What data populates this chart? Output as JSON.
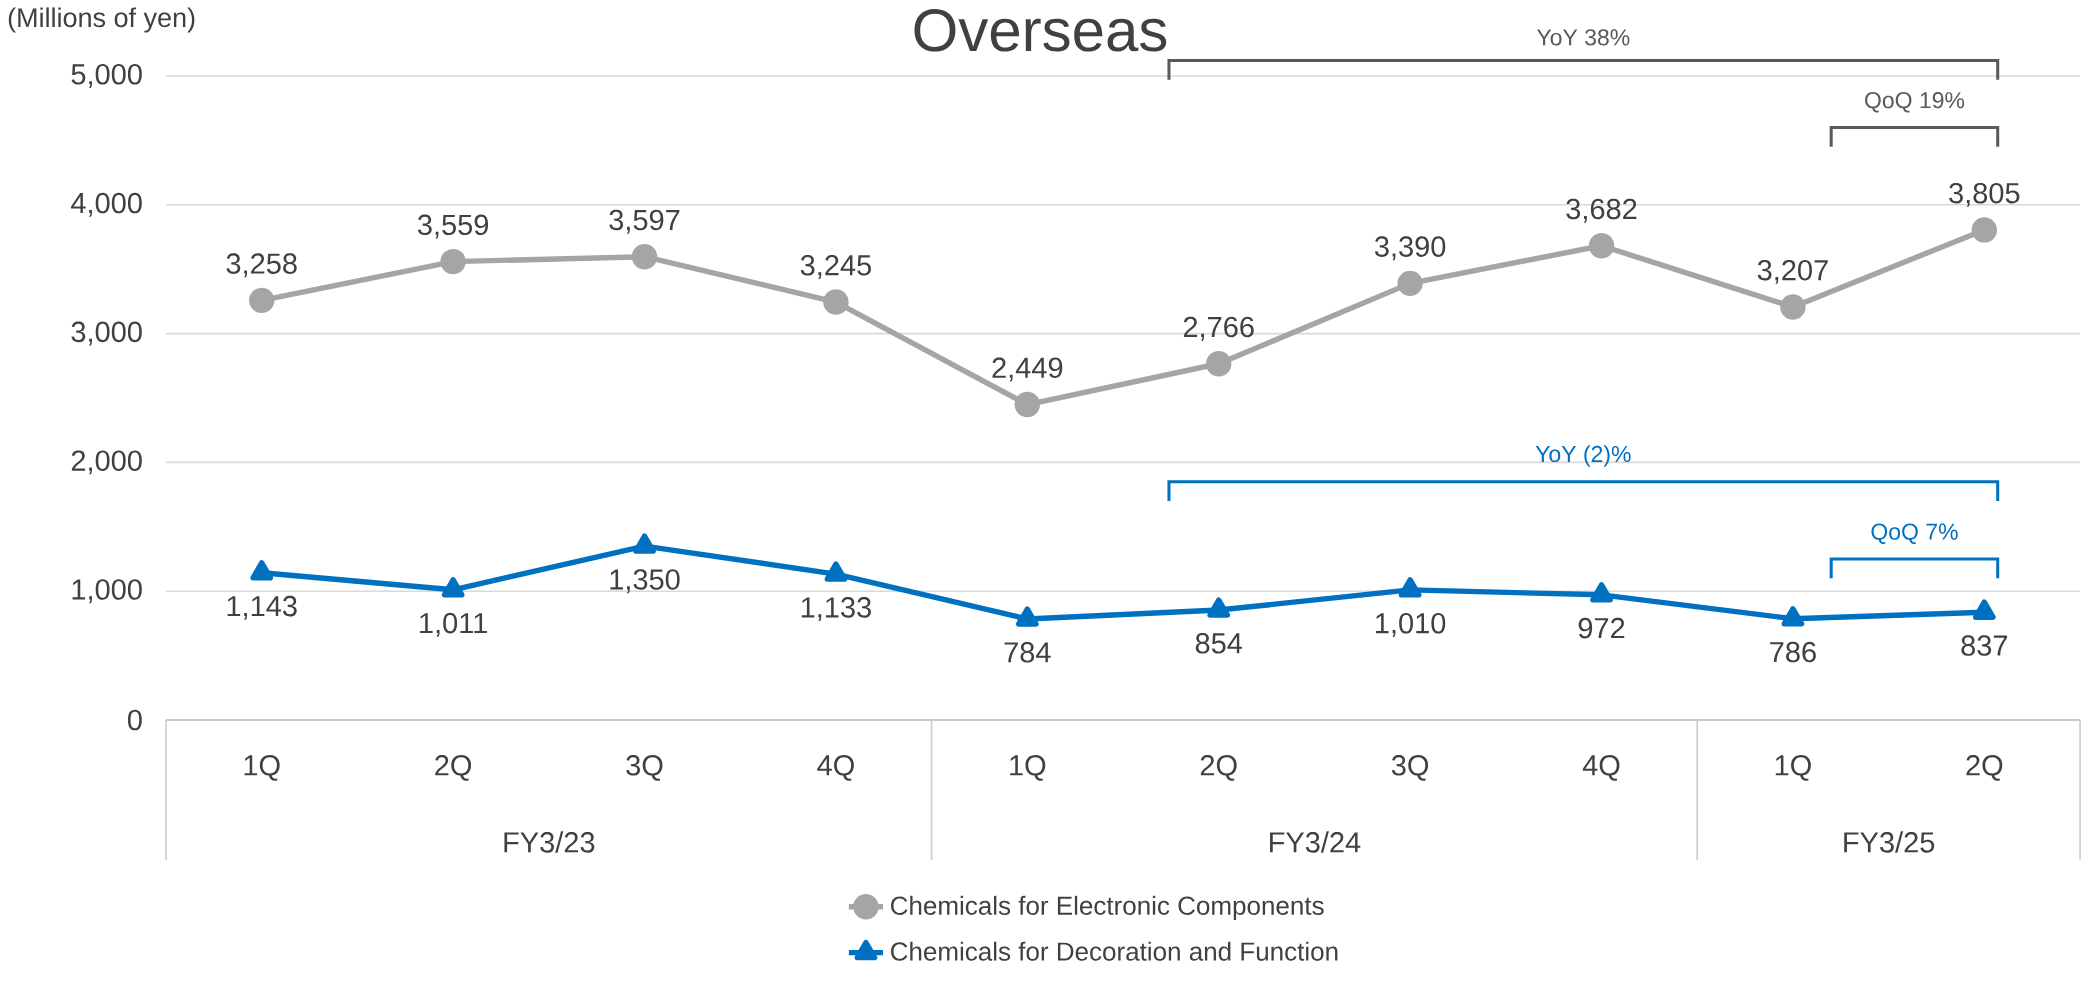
{
  "chart_data": {
    "type": "line",
    "title": "Overseas",
    "ylabel": "(Millions of yen)",
    "categories": [
      "1Q",
      "2Q",
      "3Q",
      "4Q",
      "1Q",
      "2Q",
      "3Q",
      "4Q",
      "1Q",
      "2Q"
    ],
    "series": [
      {
        "name": "Chemicals for Electronic Components",
        "color": "#a5a5a5",
        "marker": "circle",
        "values": [
          3258,
          3559,
          3597,
          3245,
          2449,
          2766,
          3390,
          3682,
          3207,
          3805
        ],
        "value_labels": [
          "3,258",
          "3,559",
          "3,597",
          "3,245",
          "2,449",
          "2,766",
          "3,390",
          "3,682",
          "3,207",
          "3,805"
        ]
      },
      {
        "name": "Chemicals for Decoration and Function",
        "color": "#0070c0",
        "marker": "triangle",
        "values": [
          1143,
          1011,
          1350,
          1133,
          784,
          854,
          1010,
          972,
          786,
          837
        ],
        "value_labels": [
          "1,143",
          "1,011",
          "1,350",
          "1,133",
          "784",
          "854",
          "1,010",
          "972",
          "786",
          "837"
        ]
      }
    ],
    "ylim": [
      0,
      5000
    ],
    "yticks": [
      0,
      {
        "value": 1000,
        "label": "1,000"
      },
      {
        "value": 2000,
        "label": "2,000"
      },
      {
        "value": 3000,
        "label": "3,000"
      },
      {
        "value": 4000,
        "label": "4,000"
      },
      {
        "value": 5000,
        "label": "5,000"
      }
    ],
    "grid": "y",
    "legend": "bottom",
    "line_style": "solid",
    "annotations": [
      "YoY 38%",
      "QoQ 19%",
      "YoY (2)%",
      "QoQ 7%",
      "FY3/23",
      "FY3/24",
      "FY3/25"
    ]
  }
}
